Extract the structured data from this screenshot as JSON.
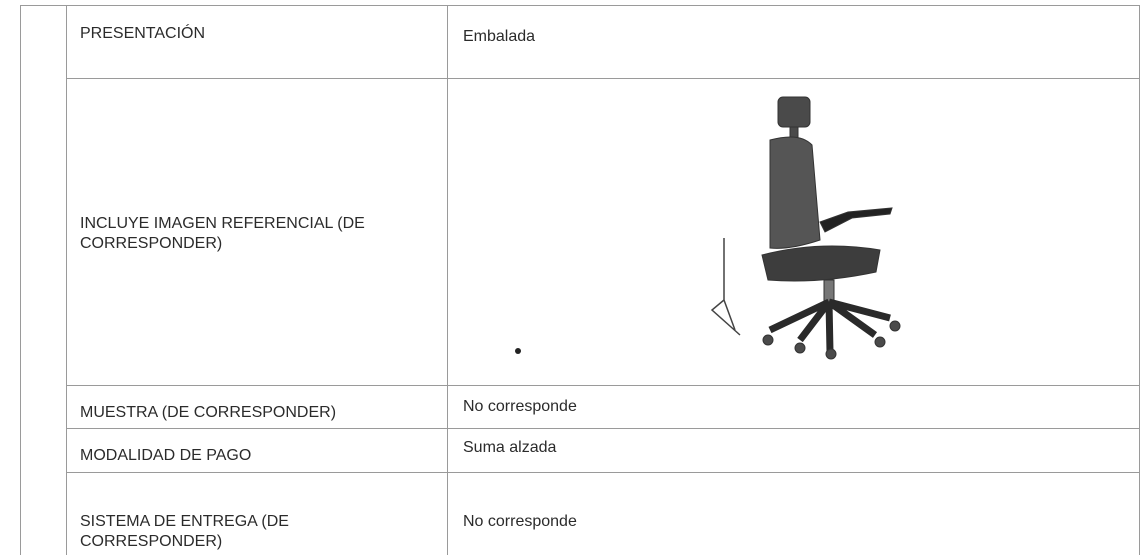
{
  "table": {
    "rows": [
      [
        "PRESENTACIÓN",
        "Embalada"
      ],
      [
        "INCLUYE IMAGEN REFERENCIAL (DE CORRESPONDER)"
      ],
      [
        "MUESTRA (DE CORRESPONDER)",
        "No corresponde"
      ],
      [
        "MODALIDAD DE PAGO",
        "Suma alzada"
      ],
      [
        "SISTEMA DE ENTREGA (DE CORRESPONDER)",
        "No corresponde"
      ]
    ]
  }
}
